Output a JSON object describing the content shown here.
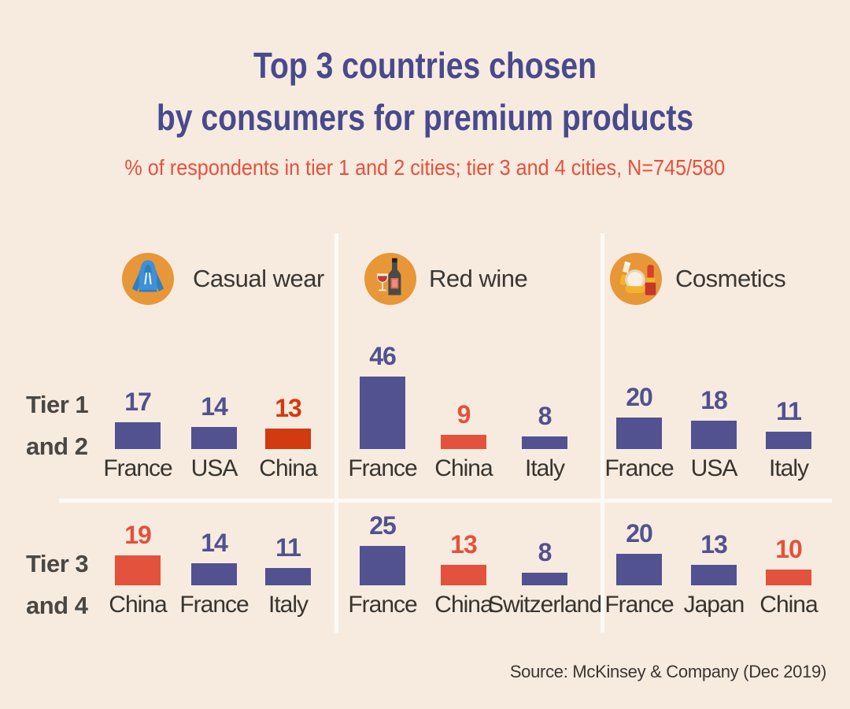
{
  "chart_data": {
    "type": "bar",
    "title": "Top 3 countries chosen by consumers for premium products",
    "title_lines": [
      "Top 3 countries chosen",
      "by consumers for premium products"
    ],
    "subtitle": "% of respondents in tier 1 and 2 cities; tier 3 and 4 cities, N=745/580",
    "source": "Source: McKinsey & Company (Dec 2019)",
    "unit": "% of respondents",
    "ylim": [
      0,
      50
    ],
    "grid": false,
    "legend": false,
    "row_groups": [
      {
        "label": "Tier 1 and 2",
        "label_lines": [
          "Tier 1",
          "and 2"
        ]
      },
      {
        "label": "Tier 3 and 4",
        "label_lines": [
          "Tier 3",
          "and 4"
        ]
      }
    ],
    "categories": [
      {
        "name": "Casual wear",
        "icon": "hoodie-icon",
        "tier_1_2": [
          {
            "country": "France",
            "value": 17,
            "color": "purple"
          },
          {
            "country": "USA",
            "value": 14,
            "color": "purple"
          },
          {
            "country": "China",
            "value": 13,
            "color": "red_dark"
          }
        ],
        "tier_3_4": [
          {
            "country": "China",
            "value": 19,
            "color": "red"
          },
          {
            "country": "France",
            "value": 14,
            "color": "purple"
          },
          {
            "country": "Italy",
            "value": 11,
            "color": "purple"
          }
        ]
      },
      {
        "name": "Red wine",
        "icon": "wine-icon",
        "tier_1_2": [
          {
            "country": "France",
            "value": 46,
            "color": "purple"
          },
          {
            "country": "China",
            "value": 9,
            "color": "red"
          },
          {
            "country": "Italy",
            "value": 8,
            "color": "purple"
          }
        ],
        "tier_3_4": [
          {
            "country": "France",
            "value": 25,
            "color": "purple"
          },
          {
            "country": "China",
            "value": 13,
            "color": "red"
          },
          {
            "country": "Switzerland",
            "value": 8,
            "color": "purple"
          }
        ]
      },
      {
        "name": "Cosmetics",
        "icon": "cosmetics-icon",
        "tier_1_2": [
          {
            "country": "France",
            "value": 20,
            "color": "purple"
          },
          {
            "country": "USA",
            "value": 18,
            "color": "purple"
          },
          {
            "country": "Italy",
            "value": 11,
            "color": "purple"
          }
        ],
        "tier_3_4": [
          {
            "country": "France",
            "value": 20,
            "color": "purple"
          },
          {
            "country": "Japan",
            "value": 13,
            "color": "purple"
          },
          {
            "country": "China",
            "value": 10,
            "color": "red"
          }
        ]
      }
    ]
  },
  "colors": {
    "background": "#f7ebe0",
    "purple": "#51528f",
    "red": "#e2523c",
    "red_dark": "#d23a10",
    "title": "#484a8c",
    "subtitle": "#e8503a",
    "row_label": "#4a4743",
    "text": "#38342f",
    "divider": "#fdfaf5",
    "icon_circle": "#e79737"
  }
}
